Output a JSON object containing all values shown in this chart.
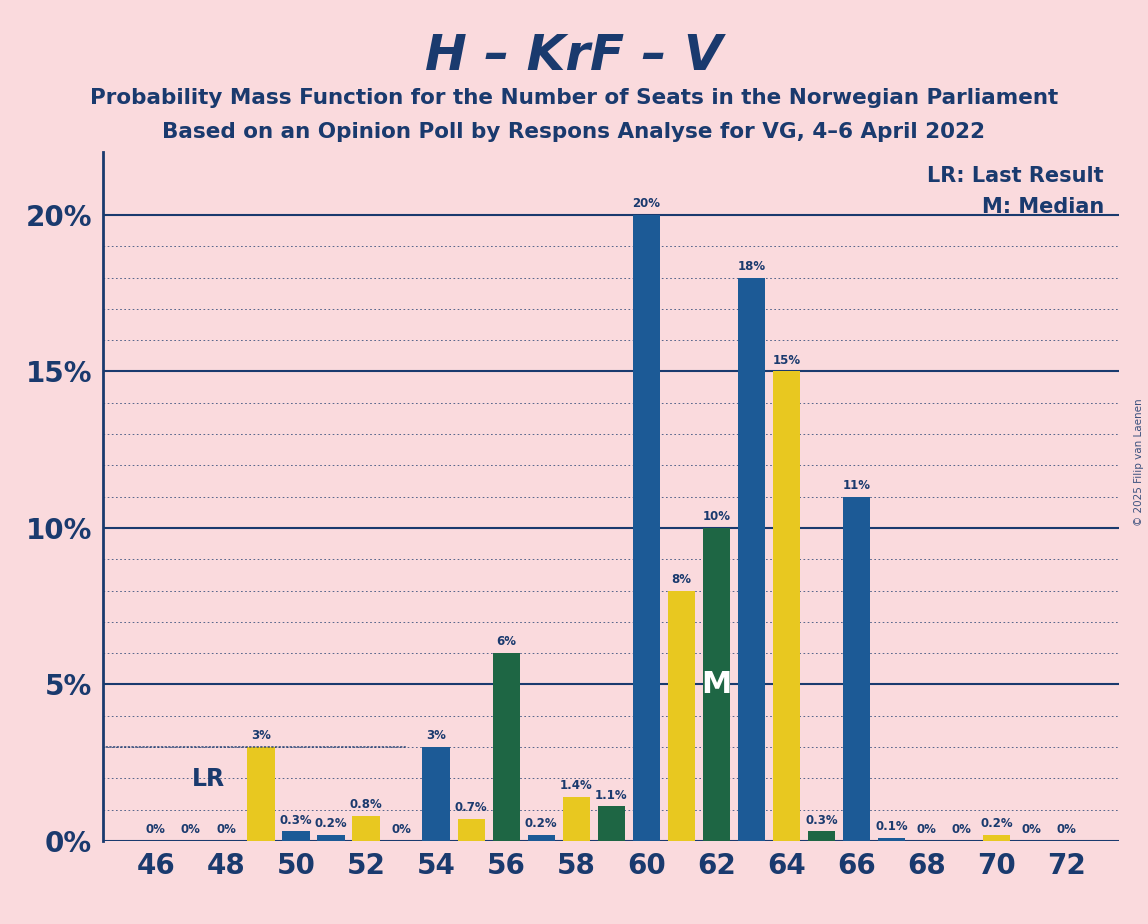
{
  "title": "H – KrF – V",
  "subtitle1": "Probability Mass Function for the Number of Seats in the Norwegian Parliament",
  "subtitle2": "Based on an Opinion Poll by Respons Analyse for VG, 4–6 April 2022",
  "copyright": "© 2025 Filip van Laenen",
  "background_color": "#fadadd",
  "title_color": "#1a3a6e",
  "bar_color_blue": "#1c5a96",
  "bar_color_yellow": "#e8c820",
  "bar_color_green": "#1e6644",
  "lr_legend": "LR: Last Result",
  "median_legend": "M: Median",
  "seats": [
    46,
    47,
    48,
    49,
    50,
    51,
    52,
    53,
    54,
    55,
    56,
    57,
    58,
    59,
    60,
    61,
    62,
    63,
    64,
    65,
    66,
    67,
    68,
    69,
    70,
    71,
    72
  ],
  "pmf_values": [
    0.0,
    0.0,
    0.0,
    3.0,
    0.3,
    0.2,
    0.8,
    0.0,
    3.0,
    0.7,
    6.0,
    0.2,
    1.4,
    1.1,
    20.0,
    8.0,
    10.0,
    18.0,
    15.0,
    0.3,
    11.0,
    0.1,
    0.0,
    0.0,
    0.2,
    0.0,
    0.0
  ],
  "bar_colors": [
    "blue",
    "blue",
    "blue",
    "yellow",
    "blue",
    "blue",
    "yellow",
    "blue",
    "blue",
    "yellow",
    "green",
    "blue",
    "yellow",
    "green",
    "blue",
    "yellow",
    "green",
    "blue",
    "yellow",
    "green",
    "blue",
    "blue",
    "blue",
    "blue",
    "yellow",
    "blue",
    "blue"
  ],
  "lr_seat": 49,
  "median_seat": 62,
  "xlim": [
    44.5,
    73.5
  ],
  "ylim": [
    0,
    22
  ],
  "yticks": [
    0,
    5,
    10,
    15,
    20
  ],
  "ytick_labels": [
    "0%",
    "5%",
    "10%",
    "15%",
    "20%"
  ],
  "xtick_seats": [
    46,
    48,
    50,
    52,
    54,
    56,
    58,
    60,
    62,
    64,
    66,
    68,
    70,
    72
  ]
}
